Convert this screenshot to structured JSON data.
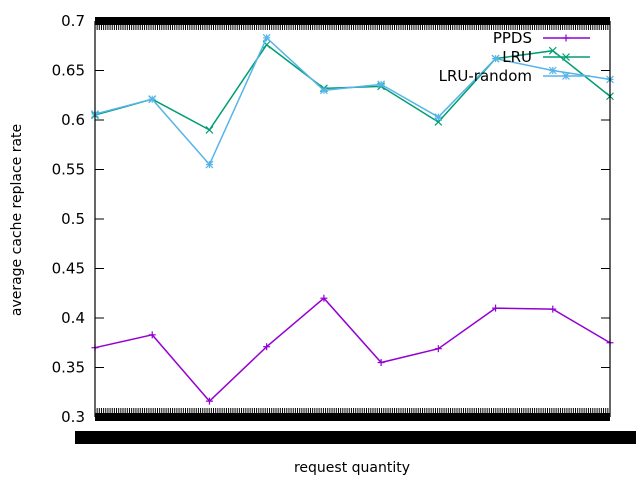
{
  "chart_data": {
    "type": "line",
    "title": "",
    "xlabel": "request quantity",
    "ylabel": "average cache replace rate",
    "ylim": [
      0.3,
      0.7
    ],
    "yticks": [
      "0.3",
      "0.35",
      "0.4",
      "0.45",
      "0.5",
      "0.55",
      "0.6",
      "0.65",
      "0.7"
    ],
    "x": [
      1,
      2,
      3,
      4,
      5,
      6,
      7,
      8,
      9,
      10
    ],
    "xlim": [
      1,
      10
    ],
    "grid": false,
    "legend_position": "top-right",
    "series": [
      {
        "name": "PPDS",
        "color": "#9400d3",
        "marker": "plus",
        "values": [
          0.37,
          0.383,
          0.316,
          0.371,
          0.42,
          0.355,
          0.369,
          0.41,
          0.409,
          0.375
        ]
      },
      {
        "name": "LRU",
        "color": "#009e73",
        "marker": "cross",
        "values": [
          0.605,
          0.621,
          0.59,
          0.676,
          0.632,
          0.634,
          0.598,
          0.662,
          0.67,
          0.624
        ]
      },
      {
        "name": "LRU-random",
        "color": "#56b4e9",
        "marker": "asterisk",
        "values": [
          0.606,
          0.621,
          0.555,
          0.683,
          0.63,
          0.636,
          0.603,
          0.662,
          0.65,
          0.641
        ]
      }
    ]
  }
}
